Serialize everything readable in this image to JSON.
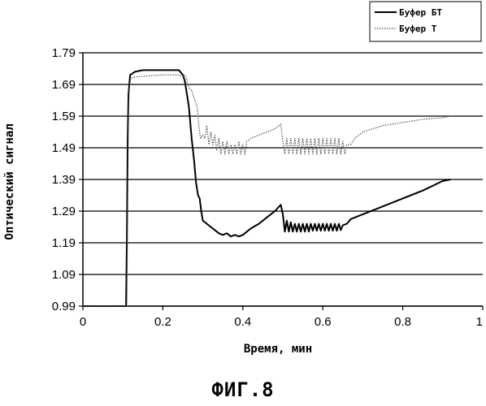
{
  "figure_caption": "ФИГ.8",
  "chart_data": {
    "type": "line",
    "title": "",
    "xlabel": "Время, мин",
    "ylabel": "Оптический сигнал",
    "xlim": [
      0,
      1
    ],
    "ylim": [
      0.99,
      1.79
    ],
    "x_ticks": [
      "0",
      "0.2",
      "0.4",
      "0.6",
      "0.8",
      "1"
    ],
    "y_ticks": [
      "0.99",
      "1.09",
      "1.19",
      "1.29",
      "1.39",
      "1.49",
      "1.59",
      "1.69",
      "1.79"
    ],
    "grid": "horizontal",
    "legend_position": "top-right",
    "series": [
      {
        "name": "Буфер БТ",
        "style": "solid",
        "color": "#000000",
        "points": [
          [
            0,
            0.99
          ],
          [
            0.05,
            0.99
          ],
          [
            0.108,
            0.99
          ],
          [
            0.11,
            1.2
          ],
          [
            0.112,
            1.52
          ],
          [
            0.114,
            1.66
          ],
          [
            0.118,
            1.72
          ],
          [
            0.13,
            1.73
          ],
          [
            0.15,
            1.735
          ],
          [
            0.2,
            1.735
          ],
          [
            0.24,
            1.735
          ],
          [
            0.25,
            1.72
          ],
          [
            0.255,
            1.7
          ],
          [
            0.265,
            1.62
          ],
          [
            0.272,
            1.52
          ],
          [
            0.278,
            1.45
          ],
          [
            0.283,
            1.38
          ],
          [
            0.288,
            1.34
          ],
          [
            0.292,
            1.33
          ],
          [
            0.296,
            1.29
          ],
          [
            0.3,
            1.26
          ],
          [
            0.31,
            1.25
          ],
          [
            0.32,
            1.24
          ],
          [
            0.33,
            1.23
          ],
          [
            0.34,
            1.22
          ],
          [
            0.35,
            1.215
          ],
          [
            0.36,
            1.22
          ],
          [
            0.37,
            1.21
          ],
          [
            0.38,
            1.215
          ],
          [
            0.39,
            1.21
          ],
          [
            0.4,
            1.215
          ],
          [
            0.41,
            1.225
          ],
          [
            0.42,
            1.235
          ],
          [
            0.44,
            1.25
          ],
          [
            0.46,
            1.27
          ],
          [
            0.48,
            1.29
          ],
          [
            0.495,
            1.31
          ],
          [
            0.5,
            1.28
          ],
          [
            0.505,
            1.225
          ],
          [
            0.51,
            1.26
          ],
          [
            0.515,
            1.225
          ],
          [
            0.52,
            1.255
          ],
          [
            0.525,
            1.225
          ],
          [
            0.53,
            1.25
          ],
          [
            0.535,
            1.225
          ],
          [
            0.54,
            1.25
          ],
          [
            0.545,
            1.225
          ],
          [
            0.55,
            1.25
          ],
          [
            0.555,
            1.225
          ],
          [
            0.56,
            1.25
          ],
          [
            0.565,
            1.225
          ],
          [
            0.57,
            1.25
          ],
          [
            0.575,
            1.228
          ],
          [
            0.58,
            1.25
          ],
          [
            0.585,
            1.228
          ],
          [
            0.59,
            1.25
          ],
          [
            0.595,
            1.228
          ],
          [
            0.6,
            1.25
          ],
          [
            0.605,
            1.228
          ],
          [
            0.61,
            1.25
          ],
          [
            0.615,
            1.228
          ],
          [
            0.62,
            1.25
          ],
          [
            0.625,
            1.228
          ],
          [
            0.63,
            1.25
          ],
          [
            0.635,
            1.228
          ],
          [
            0.64,
            1.25
          ],
          [
            0.645,
            1.23
          ],
          [
            0.65,
            1.245
          ],
          [
            0.66,
            1.25
          ],
          [
            0.67,
            1.265
          ],
          [
            0.7,
            1.28
          ],
          [
            0.75,
            1.305
          ],
          [
            0.8,
            1.33
          ],
          [
            0.85,
            1.355
          ],
          [
            0.9,
            1.385
          ],
          [
            0.92,
            1.39
          ]
        ]
      },
      {
        "name": "Буфер Т",
        "style": "dotted",
        "color": "#555555",
        "points": [
          [
            0,
            0.99
          ],
          [
            0.05,
            0.99
          ],
          [
            0.11,
            0.99
          ],
          [
            0.112,
            1.3
          ],
          [
            0.114,
            1.6
          ],
          [
            0.116,
            1.68
          ],
          [
            0.12,
            1.71
          ],
          [
            0.14,
            1.715
          ],
          [
            0.2,
            1.72
          ],
          [
            0.24,
            1.72
          ],
          [
            0.25,
            1.715
          ],
          [
            0.255,
            1.72
          ],
          [
            0.26,
            1.705
          ],
          [
            0.265,
            1.68
          ],
          [
            0.272,
            1.67
          ],
          [
            0.28,
            1.64
          ],
          [
            0.286,
            1.62
          ],
          [
            0.29,
            1.56
          ],
          [
            0.294,
            1.52
          ],
          [
            0.3,
            1.53
          ],
          [
            0.305,
            1.52
          ],
          [
            0.31,
            1.56
          ],
          [
            0.315,
            1.5
          ],
          [
            0.32,
            1.54
          ],
          [
            0.325,
            1.5
          ],
          [
            0.33,
            1.53
          ],
          [
            0.335,
            1.48
          ],
          [
            0.34,
            1.52
          ],
          [
            0.345,
            1.47
          ],
          [
            0.35,
            1.51
          ],
          [
            0.355,
            1.47
          ],
          [
            0.36,
            1.51
          ],
          [
            0.365,
            1.47
          ],
          [
            0.37,
            1.5
          ],
          [
            0.375,
            1.47
          ],
          [
            0.38,
            1.5
          ],
          [
            0.385,
            1.47
          ],
          [
            0.39,
            1.51
          ],
          [
            0.395,
            1.47
          ],
          [
            0.4,
            1.5
          ],
          [
            0.405,
            1.47
          ],
          [
            0.41,
            1.51
          ],
          [
            0.42,
            1.52
          ],
          [
            0.44,
            1.53
          ],
          [
            0.46,
            1.54
          ],
          [
            0.48,
            1.55
          ],
          [
            0.495,
            1.565
          ],
          [
            0.5,
            1.51
          ],
          [
            0.505,
            1.47
          ],
          [
            0.51,
            1.52
          ],
          [
            0.515,
            1.47
          ],
          [
            0.52,
            1.52
          ],
          [
            0.525,
            1.47
          ],
          [
            0.53,
            1.52
          ],
          [
            0.535,
            1.47
          ],
          [
            0.54,
            1.52
          ],
          [
            0.545,
            1.47
          ],
          [
            0.55,
            1.52
          ],
          [
            0.555,
            1.47
          ],
          [
            0.56,
            1.52
          ],
          [
            0.565,
            1.47
          ],
          [
            0.57,
            1.52
          ],
          [
            0.575,
            1.47
          ],
          [
            0.58,
            1.52
          ],
          [
            0.585,
            1.47
          ],
          [
            0.59,
            1.52
          ],
          [
            0.595,
            1.47
          ],
          [
            0.6,
            1.52
          ],
          [
            0.605,
            1.47
          ],
          [
            0.61,
            1.52
          ],
          [
            0.615,
            1.47
          ],
          [
            0.62,
            1.52
          ],
          [
            0.625,
            1.47
          ],
          [
            0.63,
            1.52
          ],
          [
            0.635,
            1.47
          ],
          [
            0.64,
            1.52
          ],
          [
            0.645,
            1.47
          ],
          [
            0.65,
            1.51
          ],
          [
            0.655,
            1.47
          ],
          [
            0.66,
            1.5
          ],
          [
            0.67,
            1.5
          ],
          [
            0.68,
            1.52
          ],
          [
            0.7,
            1.54
          ],
          [
            0.75,
            1.56
          ],
          [
            0.8,
            1.57
          ],
          [
            0.85,
            1.58
          ],
          [
            0.9,
            1.585
          ],
          [
            0.92,
            1.59
          ]
        ]
      }
    ]
  }
}
